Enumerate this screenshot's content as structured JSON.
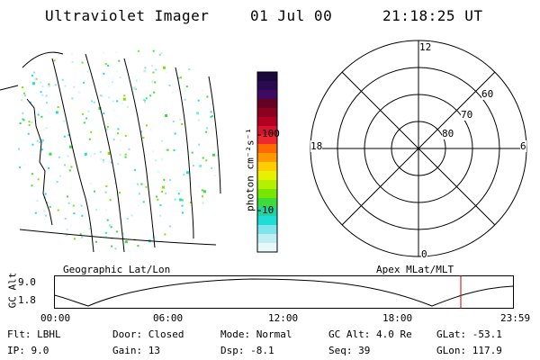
{
  "header": {
    "title": "Ultraviolet Imager",
    "date": "01 Jul 00",
    "time": "21:18:25 UT"
  },
  "colorbar": {
    "unit_label": "photon cm⁻²s⁻¹",
    "ticks": [
      "100",
      "10"
    ],
    "colors": [
      "#1a0a3c",
      "#2b0b50",
      "#3d0c62",
      "#660022",
      "#8c0020",
      "#b30022",
      "#d4142c",
      "#ef2830",
      "#ff6a00",
      "#ff9900",
      "#ffcc00",
      "#e6f000",
      "#b4f000",
      "#78e600",
      "#3cdc3c",
      "#22d2a0",
      "#1edcd6",
      "#7fe3ea",
      "#bfeef2",
      "#e6f8fa"
    ]
  },
  "image_panel": {
    "label": "Geographic Lat/Lon"
  },
  "polar_panel": {
    "label": "Apex MLat/MLT",
    "mlt_labels": {
      "top": "12",
      "bottom": "0",
      "left": "18",
      "right": "6"
    },
    "lat_labels": [
      "60",
      "70",
      "80"
    ]
  },
  "alt_plot": {
    "ylabel": "GC Alt",
    "yticks": [
      "9.0",
      "1.8"
    ],
    "xticks": [
      "00:00",
      "06:00",
      "12:00",
      "18:00",
      "23:59"
    ],
    "marker_color": "#cc0000"
  },
  "footer": {
    "flt": "Flt: LBHL",
    "ip": "IP:  9.0",
    "door": "Door: Closed",
    "gain": "Gain: 13",
    "mode": "Mode: Normal",
    "dsp": "Dsp:   -8.1",
    "gcalt": "GC Alt: 4.0 Re",
    "seq": "Seq: 39",
    "glat": "GLat: -53.1",
    "glon": "GLon: 117.9"
  }
}
